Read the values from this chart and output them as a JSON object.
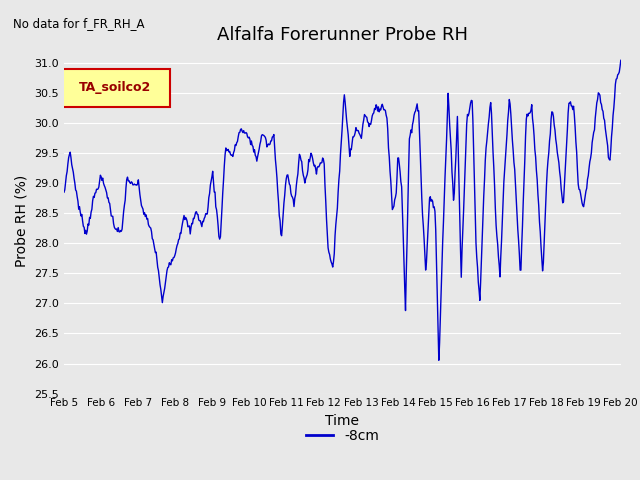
{
  "title": "Alfalfa Forerunner Probe RH",
  "no_data_label": "No data for f_FR_RH_A",
  "xlabel": "Time",
  "ylabel": "Probe RH (%)",
  "ylim": [
    25.5,
    31.25
  ],
  "yticks": [
    25.5,
    26.0,
    26.5,
    27.0,
    27.5,
    28.0,
    28.5,
    29.0,
    29.5,
    30.0,
    30.5,
    31.0
  ],
  "line_color": "#0000CC",
  "line_width": 1.0,
  "legend_label": "-8cm",
  "legend_box_color": "#FFFF99",
  "legend_box_border": "#CC0000",
  "legend_text": "TA_soilco2",
  "bg_color": "#E8E8E8",
  "plot_bg_color": "#E8E8E8",
  "grid_color": "#FFFFFF",
  "x_tick_labels": [
    "Feb 5",
    "Feb 6",
    "Feb 7",
    "Feb 8",
    "Feb 9",
    "Feb 10",
    "Feb 11",
    "Feb 12",
    "Feb 13",
    "Feb 14",
    "Feb 15",
    "Feb 16",
    "Feb 17",
    "Feb 18",
    "Feb 19",
    "Feb 20"
  ]
}
